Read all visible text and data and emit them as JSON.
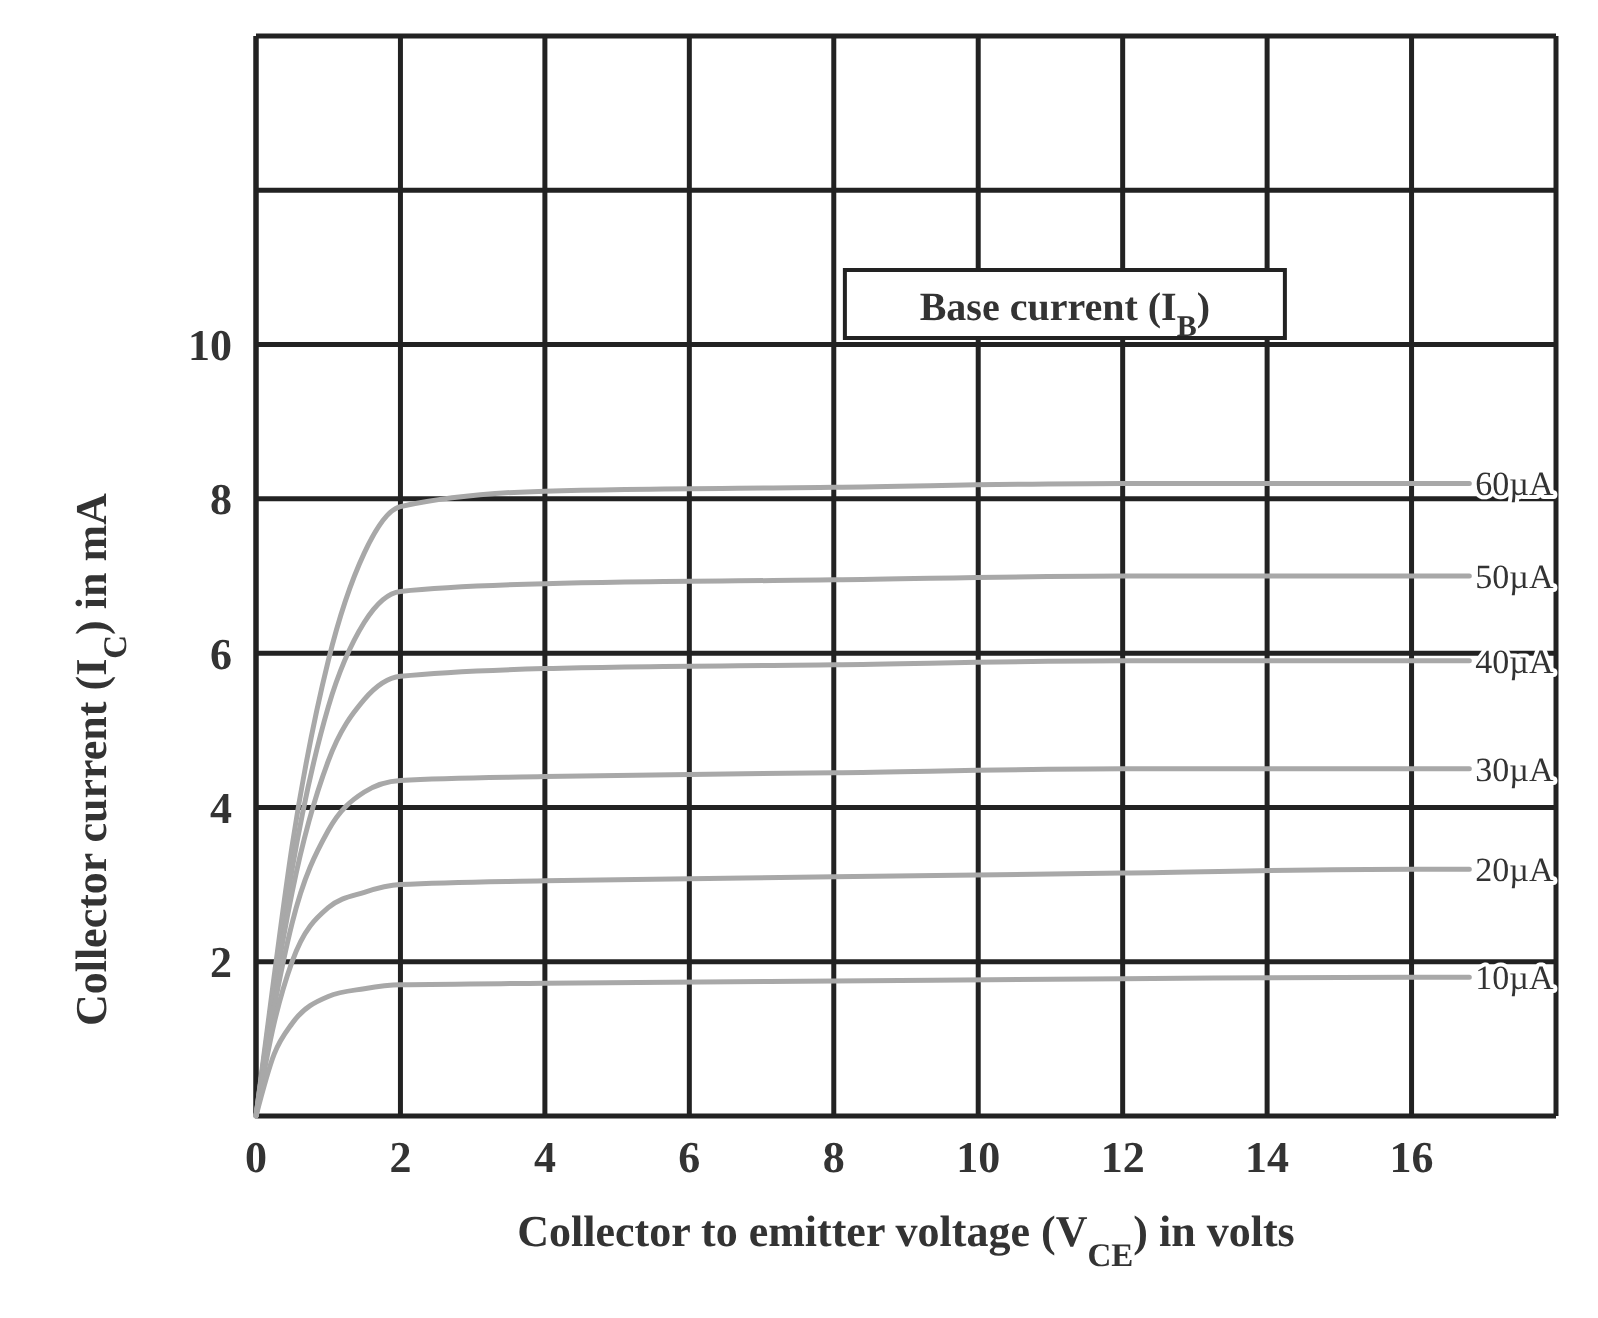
{
  "chart_data": {
    "type": "line",
    "xlabel": "Collector to emitter voltage (V$_{CE}$) in volts",
    "ylabel": "Collector current (I$_{C}$) in mA",
    "legend_title": "Base current (I$_{B}$)",
    "x": [
      0,
      0.25,
      0.5,
      1,
      1.5,
      2,
      4,
      8,
      12,
      16,
      16.8
    ],
    "xlim": [
      0,
      18
    ],
    "xticks": [
      0,
      2,
      4,
      6,
      8,
      10,
      12,
      14,
      16,
      {
        "value": 18,
        "label": null
      }
    ],
    "ylim": [
      0,
      14
    ],
    "yticks": [
      2,
      4,
      6,
      8,
      10,
      {
        "value": 12,
        "label": null
      },
      {
        "value": 14,
        "label": null
      }
    ],
    "grid": true,
    "line_style": "solid",
    "series": [
      {
        "name": "60µA",
        "color": "#a8a8a8",
        "values": [
          0,
          1.8,
          3.5,
          5.9,
          7.3,
          7.9,
          8.1,
          8.15,
          8.2,
          8.2,
          8.2
        ]
      },
      {
        "name": "50µA",
        "color": "#a8a8a8",
        "values": [
          0,
          1.7,
          3.2,
          5.3,
          6.4,
          6.8,
          6.9,
          6.95,
          7.0,
          7.0,
          7.0
        ]
      },
      {
        "name": "40µA",
        "color": "#a8a8a8",
        "values": [
          0,
          1.6,
          2.9,
          4.6,
          5.4,
          5.7,
          5.8,
          5.85,
          5.9,
          5.9,
          5.9
        ]
      },
      {
        "name": "30µA",
        "color": "#a8a8a8",
        "values": [
          0,
          1.4,
          2.5,
          3.7,
          4.2,
          4.35,
          4.4,
          4.45,
          4.5,
          4.5,
          4.5
        ]
      },
      {
        "name": "20µA",
        "color": "#a8a8a8",
        "values": [
          0,
          1.2,
          2.0,
          2.7,
          2.9,
          3.0,
          3.05,
          3.1,
          3.15,
          3.2,
          3.2
        ]
      },
      {
        "name": "10µA",
        "color": "#a8a8a8",
        "values": [
          0,
          0.8,
          1.2,
          1.55,
          1.65,
          1.7,
          1.72,
          1.75,
          1.78,
          1.8,
          1.8
        ]
      }
    ]
  }
}
